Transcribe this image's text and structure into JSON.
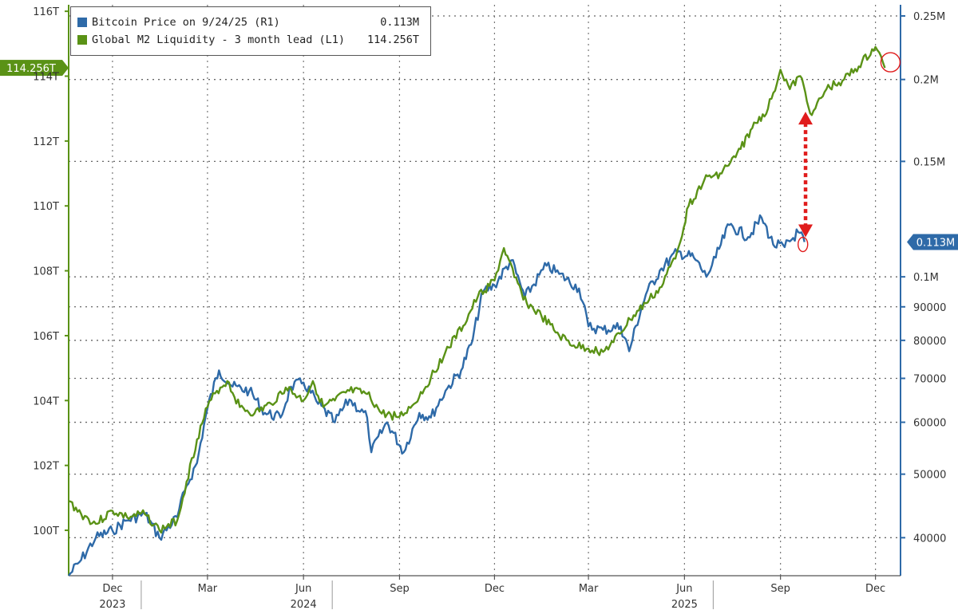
{
  "chart_data": {
    "type": "line",
    "legend": [
      {
        "label": "Bitcoin Price on 9/24/25 (R1)",
        "value": "0.113M",
        "color": "#2e6aa8"
      },
      {
        "label": "Global M2 Liquidity - 3 month lead (L1)",
        "value": "114.256T",
        "color": "#5a9216"
      }
    ],
    "left_axis": {
      "ticks": [
        "116T",
        "114T",
        "112T",
        "110T",
        "108T",
        "106T",
        "104T",
        "102T",
        "100T"
      ],
      "range": [
        98.6,
        116.2
      ],
      "current_label": "114.256T"
    },
    "right_axis": {
      "scale": "log",
      "ticks": [
        "0.25M",
        "0.2M",
        "0.15M",
        "0.1M",
        "90000",
        "80000",
        "70000",
        "60000",
        "50000",
        "40000"
      ],
      "range": [
        35000,
        260000
      ],
      "current_label": "0.113M"
    },
    "x_axis": {
      "ticks": [
        {
          "label": "Dec",
          "year": "2023"
        },
        {
          "label": "Mar",
          "year": ""
        },
        {
          "label": "Jun",
          "year": "2024"
        },
        {
          "label": "Sep",
          "year": ""
        },
        {
          "label": "Dec",
          "year": ""
        },
        {
          "label": "Mar",
          "year": ""
        },
        {
          "label": "Jun",
          "year": "2025"
        },
        {
          "label": "Sep",
          "year": ""
        },
        {
          "label": "Dec",
          "year": ""
        }
      ],
      "range": [
        "2023-10-20",
        "2025-12-25"
      ]
    },
    "series": [
      {
        "name": "Global M2 Liquidity - 3 month lead",
        "axis": "left",
        "color": "#5a9216",
        "points": [
          [
            "2023-10-20",
            100.9
          ],
          [
            "2023-11-01",
            100.5
          ],
          [
            "2023-11-15",
            100.2
          ],
          [
            "2023-12-01",
            100.6
          ],
          [
            "2023-12-15",
            100.4
          ],
          [
            "2024-01-01",
            100.5
          ],
          [
            "2024-01-15",
            100.0
          ],
          [
            "2024-02-01",
            100.3
          ],
          [
            "2024-02-10",
            101.5
          ],
          [
            "2024-02-20",
            102.8
          ],
          [
            "2024-03-01",
            103.8
          ],
          [
            "2024-03-10",
            104.3
          ],
          [
            "2024-03-20",
            104.6
          ],
          [
            "2024-04-01",
            103.8
          ],
          [
            "2024-04-15",
            103.6
          ],
          [
            "2024-05-01",
            103.9
          ],
          [
            "2024-05-15",
            104.4
          ],
          [
            "2024-06-01",
            104.0
          ],
          [
            "2024-06-10",
            104.6
          ],
          [
            "2024-06-20",
            103.8
          ],
          [
            "2024-07-01",
            104.0
          ],
          [
            "2024-07-15",
            104.3
          ],
          [
            "2024-08-01",
            104.2
          ],
          [
            "2024-08-15",
            103.6
          ],
          [
            "2024-09-01",
            103.5
          ],
          [
            "2024-09-15",
            103.9
          ],
          [
            "2024-10-01",
            104.7
          ],
          [
            "2024-10-15",
            105.5
          ],
          [
            "2024-11-01",
            106.3
          ],
          [
            "2024-11-15",
            107.2
          ],
          [
            "2024-12-01",
            107.7
          ],
          [
            "2024-12-10",
            108.7
          ],
          [
            "2024-12-20",
            107.8
          ],
          [
            "2025-01-01",
            107.0
          ],
          [
            "2025-01-15",
            106.6
          ],
          [
            "2025-02-01",
            106.0
          ],
          [
            "2025-02-15",
            105.7
          ],
          [
            "2025-03-01",
            105.6
          ],
          [
            "2025-03-15",
            105.5
          ],
          [
            "2025-03-25",
            105.8
          ],
          [
            "2025-04-10",
            106.5
          ],
          [
            "2025-04-25",
            107.0
          ],
          [
            "2025-05-10",
            107.5
          ],
          [
            "2025-05-25",
            108.6
          ],
          [
            "2025-06-05",
            110.0
          ],
          [
            "2025-06-20",
            110.8
          ],
          [
            "2025-07-05",
            111.0
          ],
          [
            "2025-07-20",
            111.5
          ],
          [
            "2025-08-05",
            112.4
          ],
          [
            "2025-08-20",
            113.0
          ],
          [
            "2025-09-01",
            114.2
          ],
          [
            "2025-09-10",
            113.6
          ],
          [
            "2025-09-20",
            114.0
          ],
          [
            "2025-10-01",
            112.8
          ],
          [
            "2025-10-15",
            113.6
          ],
          [
            "2025-11-01",
            113.9
          ],
          [
            "2025-11-15",
            114.3
          ],
          [
            "2025-12-01",
            114.9
          ],
          [
            "2025-12-10",
            114.256
          ]
        ]
      },
      {
        "name": "Bitcoin Price",
        "axis": "right",
        "color": "#2e6aa8",
        "points": [
          [
            "2023-10-20",
            35000
          ],
          [
            "2023-11-01",
            37000
          ],
          [
            "2023-11-15",
            40000
          ],
          [
            "2023-12-01",
            41000
          ],
          [
            "2023-12-15",
            42500
          ],
          [
            "2024-01-01",
            43500
          ],
          [
            "2024-01-15",
            40000
          ],
          [
            "2024-02-01",
            43000
          ],
          [
            "2024-02-10",
            48000
          ],
          [
            "2024-02-20",
            52000
          ],
          [
            "2024-03-01",
            63000
          ],
          [
            "2024-03-12",
            72000
          ],
          [
            "2024-03-25",
            68000
          ],
          [
            "2024-04-10",
            67000
          ],
          [
            "2024-04-25",
            62000
          ],
          [
            "2024-05-10",
            61000
          ],
          [
            "2024-05-20",
            68000
          ],
          [
            "2024-06-01",
            69000
          ],
          [
            "2024-06-15",
            64000
          ],
          [
            "2024-07-01",
            60000
          ],
          [
            "2024-07-15",
            65000
          ],
          [
            "2024-08-01",
            61000
          ],
          [
            "2024-08-05",
            54000
          ],
          [
            "2024-08-20",
            60000
          ],
          [
            "2024-09-05",
            54000
          ],
          [
            "2024-09-20",
            62000
          ],
          [
            "2024-10-01",
            61000
          ],
          [
            "2024-10-15",
            67000
          ],
          [
            "2024-10-30",
            72000
          ],
          [
            "2024-11-10",
            80000
          ],
          [
            "2024-11-20",
            95000
          ],
          [
            "2024-12-01",
            97000
          ],
          [
            "2024-12-17",
            106000
          ],
          [
            "2024-12-30",
            93000
          ],
          [
            "2025-01-20",
            104000
          ],
          [
            "2025-02-01",
            101000
          ],
          [
            "2025-02-20",
            96000
          ],
          [
            "2025-03-01",
            84000
          ],
          [
            "2025-03-15",
            83000
          ],
          [
            "2025-04-01",
            84000
          ],
          [
            "2025-04-09",
            77000
          ],
          [
            "2025-04-25",
            94000
          ],
          [
            "2025-05-10",
            103000
          ],
          [
            "2025-05-25",
            109000
          ],
          [
            "2025-06-10",
            107000
          ],
          [
            "2025-06-22",
            100000
          ],
          [
            "2025-07-01",
            107000
          ],
          [
            "2025-07-14",
            120000
          ],
          [
            "2025-08-01",
            115000
          ],
          [
            "2025-08-14",
            123000
          ],
          [
            "2025-08-25",
            112000
          ],
          [
            "2025-09-05",
            111000
          ],
          [
            "2025-09-18",
            117000
          ],
          [
            "2025-09-24",
            113000
          ]
        ]
      }
    ],
    "annotations": [
      "gap arrow between M2 and Bitcoin",
      "circle at Bitcoin end",
      "circle at M2 end"
    ]
  }
}
